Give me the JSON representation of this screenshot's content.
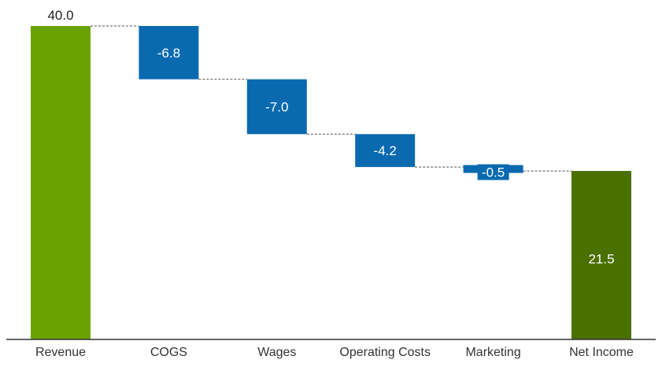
{
  "chart_data": {
    "type": "bar",
    "subtype": "waterfall",
    "title": "",
    "xlabel": "",
    "ylabel": "",
    "ylim": [
      0,
      40
    ],
    "grid": false,
    "legend": "none",
    "categories": [
      "Revenue",
      "COGS",
      "Wages",
      "Operating Costs",
      "Marketing",
      "Net Income"
    ],
    "steps": [
      {
        "category": "Revenue",
        "kind": "total",
        "value": 40.0,
        "label": "40.0",
        "color": "#6aa300"
      },
      {
        "category": "COGS",
        "kind": "delta",
        "value": -6.8,
        "label": "-6.8",
        "color": "#0a6ab0"
      },
      {
        "category": "Wages",
        "kind": "delta",
        "value": -7.0,
        "label": "-7.0",
        "color": "#0a6ab0"
      },
      {
        "category": "Operating Costs",
        "kind": "delta",
        "value": -4.2,
        "label": "-4.2",
        "color": "#0a6ab0"
      },
      {
        "category": "Marketing",
        "kind": "delta",
        "value": -0.5,
        "label": "-0.5",
        "color": "#0a6ab0"
      },
      {
        "category": "Net Income",
        "kind": "total",
        "value": 21.5,
        "label": "21.5",
        "color": "#4a7000"
      }
    ]
  }
}
